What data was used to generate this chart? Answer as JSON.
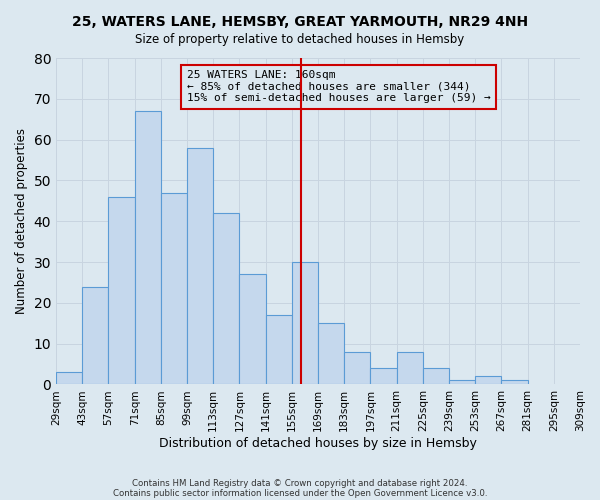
{
  "title": "25, WATERS LANE, HEMSBY, GREAT YARMOUTH, NR29 4NH",
  "subtitle": "Size of property relative to detached houses in Hemsby",
  "xlabel": "Distribution of detached houses by size in Hemsby",
  "ylabel": "Number of detached properties",
  "bar_values": [
    3,
    24,
    46,
    67,
    47,
    58,
    42,
    27,
    17,
    30,
    15,
    8,
    4,
    8,
    4,
    1,
    2,
    1
  ],
  "bin_labels": [
    "29sqm",
    "43sqm",
    "57sqm",
    "71sqm",
    "85sqm",
    "99sqm",
    "113sqm",
    "127sqm",
    "141sqm",
    "155sqm",
    "169sqm",
    "183sqm",
    "197sqm",
    "211sqm",
    "225sqm",
    "239sqm",
    "253sqm",
    "267sqm",
    "281sqm",
    "295sqm",
    "309sqm"
  ],
  "bin_edges": [
    29,
    43,
    57,
    71,
    85,
    99,
    113,
    127,
    141,
    155,
    169,
    183,
    197,
    211,
    225,
    239,
    253,
    267,
    281,
    295,
    309
  ],
  "bar_color": "#c5d8ed",
  "bar_edge_color": "#5b9bd5",
  "property_size": 160,
  "vline_color": "#cc0000",
  "annotation_text": "25 WATERS LANE: 160sqm\n← 85% of detached houses are smaller (344)\n15% of semi-detached houses are larger (59) →",
  "annotation_box_edge": "#cc0000",
  "ylim": [
    0,
    80
  ],
  "yticks": [
    0,
    10,
    20,
    30,
    40,
    50,
    60,
    70,
    80
  ],
  "footer1": "Contains HM Land Registry data © Crown copyright and database right 2024.",
  "footer2": "Contains public sector information licensed under the Open Government Licence v3.0.",
  "grid_color": "#c8d4e0",
  "background_color": "#dce8f0"
}
